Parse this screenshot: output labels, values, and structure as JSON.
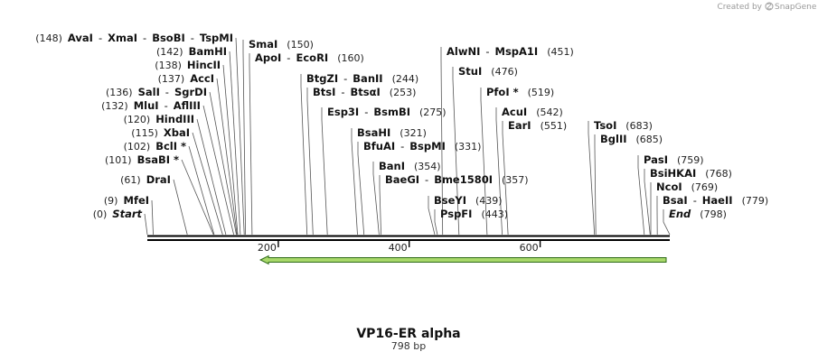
{
  "brand": {
    "prefix": "Created by",
    "name": "SnapGene"
  },
  "title": "VP16-ER alpha",
  "subtitle": "798 bp",
  "colors": {
    "arrow_fill": "#a8d86a",
    "arrow_stroke": "#2e6b17",
    "backbone": "#000000",
    "leader": "#555555"
  },
  "length_bp": 798,
  "ticks": [
    {
      "bp": 200,
      "label": "200"
    },
    {
      "bp": 400,
      "label": "400"
    },
    {
      "bp": 600,
      "label": "600"
    }
  ],
  "feature": {
    "name": "reverse-strand feature arrow",
    "start_bp": 170,
    "end_bp": 798,
    "direction": "reverse"
  },
  "sites": [
    {
      "pos_label": "(148)",
      "names": [
        "AvaI",
        "XmaI",
        "BsoBI",
        "TspMI"
      ],
      "bp": 148
    },
    {
      "pos_label": "(142)",
      "names": [
        "BamHI"
      ],
      "bp": 142
    },
    {
      "pos_label": "(138)",
      "names": [
        "HincII"
      ],
      "bp": 138
    },
    {
      "pos_label": "(137)",
      "names": [
        "AccI"
      ],
      "bp": 137
    },
    {
      "pos_label": "(136)",
      "names": [
        "SalI",
        "SgrDI"
      ],
      "bp": 136
    },
    {
      "pos_label": "(132)",
      "names": [
        "MluI",
        "AflIII"
      ],
      "bp": 132
    },
    {
      "pos_label": "(120)",
      "names": [
        "HindIII"
      ],
      "bp": 120
    },
    {
      "pos_label": "(115)",
      "names": [
        "XbaI"
      ],
      "bp": 115
    },
    {
      "pos_label": "(102)",
      "names": [
        "BclI *"
      ],
      "bp": 102
    },
    {
      "pos_label": "(101)",
      "names": [
        "BsaBI *"
      ],
      "bp": 101
    },
    {
      "pos_label": "(61)",
      "names": [
        "DraI"
      ],
      "bp": 61
    },
    {
      "pos_label": "(9)",
      "names": [
        "MfeI"
      ],
      "bp": 9
    },
    {
      "pos_label": "(0)",
      "names": [
        "Start"
      ],
      "bp": 0,
      "italic": true
    },
    {
      "pos_label": "(150)",
      "names": [
        "SmaI"
      ],
      "bp": 150
    },
    {
      "pos_label": "(160)",
      "names": [
        "ApoI",
        "EcoRI"
      ],
      "bp": 160
    },
    {
      "pos_label": "(244)",
      "names": [
        "BtgZI",
        "BanII"
      ],
      "bp": 244
    },
    {
      "pos_label": "(253)",
      "names": [
        "BtsI",
        "BtsαI"
      ],
      "bp": 253
    },
    {
      "pos_label": "(275)",
      "names": [
        "Esp3I",
        "BsmBI"
      ],
      "bp": 275
    },
    {
      "pos_label": "(321)",
      "names": [
        "BsaHI"
      ],
      "bp": 321
    },
    {
      "pos_label": "(331)",
      "names": [
        "BfuAI",
        "BspMI"
      ],
      "bp": 331
    },
    {
      "pos_label": "(354)",
      "names": [
        "BanI"
      ],
      "bp": 354
    },
    {
      "pos_label": "(357)",
      "names": [
        "BaeGI",
        "Bme1580I"
      ],
      "bp": 357
    },
    {
      "pos_label": "(439)",
      "names": [
        "BseYI"
      ],
      "bp": 439
    },
    {
      "pos_label": "(443)",
      "names": [
        "PspFI"
      ],
      "bp": 443
    },
    {
      "pos_label": "(451)",
      "names": [
        "AlwNI",
        "MspA1I"
      ],
      "bp": 451
    },
    {
      "pos_label": "(476)",
      "names": [
        "StuI"
      ],
      "bp": 476
    },
    {
      "pos_label": "(519)",
      "names": [
        "PfoI *"
      ],
      "bp": 519
    },
    {
      "pos_label": "(542)",
      "names": [
        "AcuI"
      ],
      "bp": 542
    },
    {
      "pos_label": "(551)",
      "names": [
        "EarI"
      ],
      "bp": 551
    },
    {
      "pos_label": "(683)",
      "names": [
        "TsoI"
      ],
      "bp": 683
    },
    {
      "pos_label": "(685)",
      "names": [
        "BglII"
      ],
      "bp": 685
    },
    {
      "pos_label": "(759)",
      "names": [
        "PasI"
      ],
      "bp": 759
    },
    {
      "pos_label": "(768)",
      "names": [
        "BsiHKAI"
      ],
      "bp": 768
    },
    {
      "pos_label": "(769)",
      "names": [
        "NcoI"
      ],
      "bp": 769
    },
    {
      "pos_label": "(779)",
      "names": [
        "BsaI",
        "HaeII"
      ],
      "bp": 779
    },
    {
      "pos_label": "(798)",
      "names": [
        "End"
      ],
      "bp": 798,
      "italic": true
    }
  ]
}
